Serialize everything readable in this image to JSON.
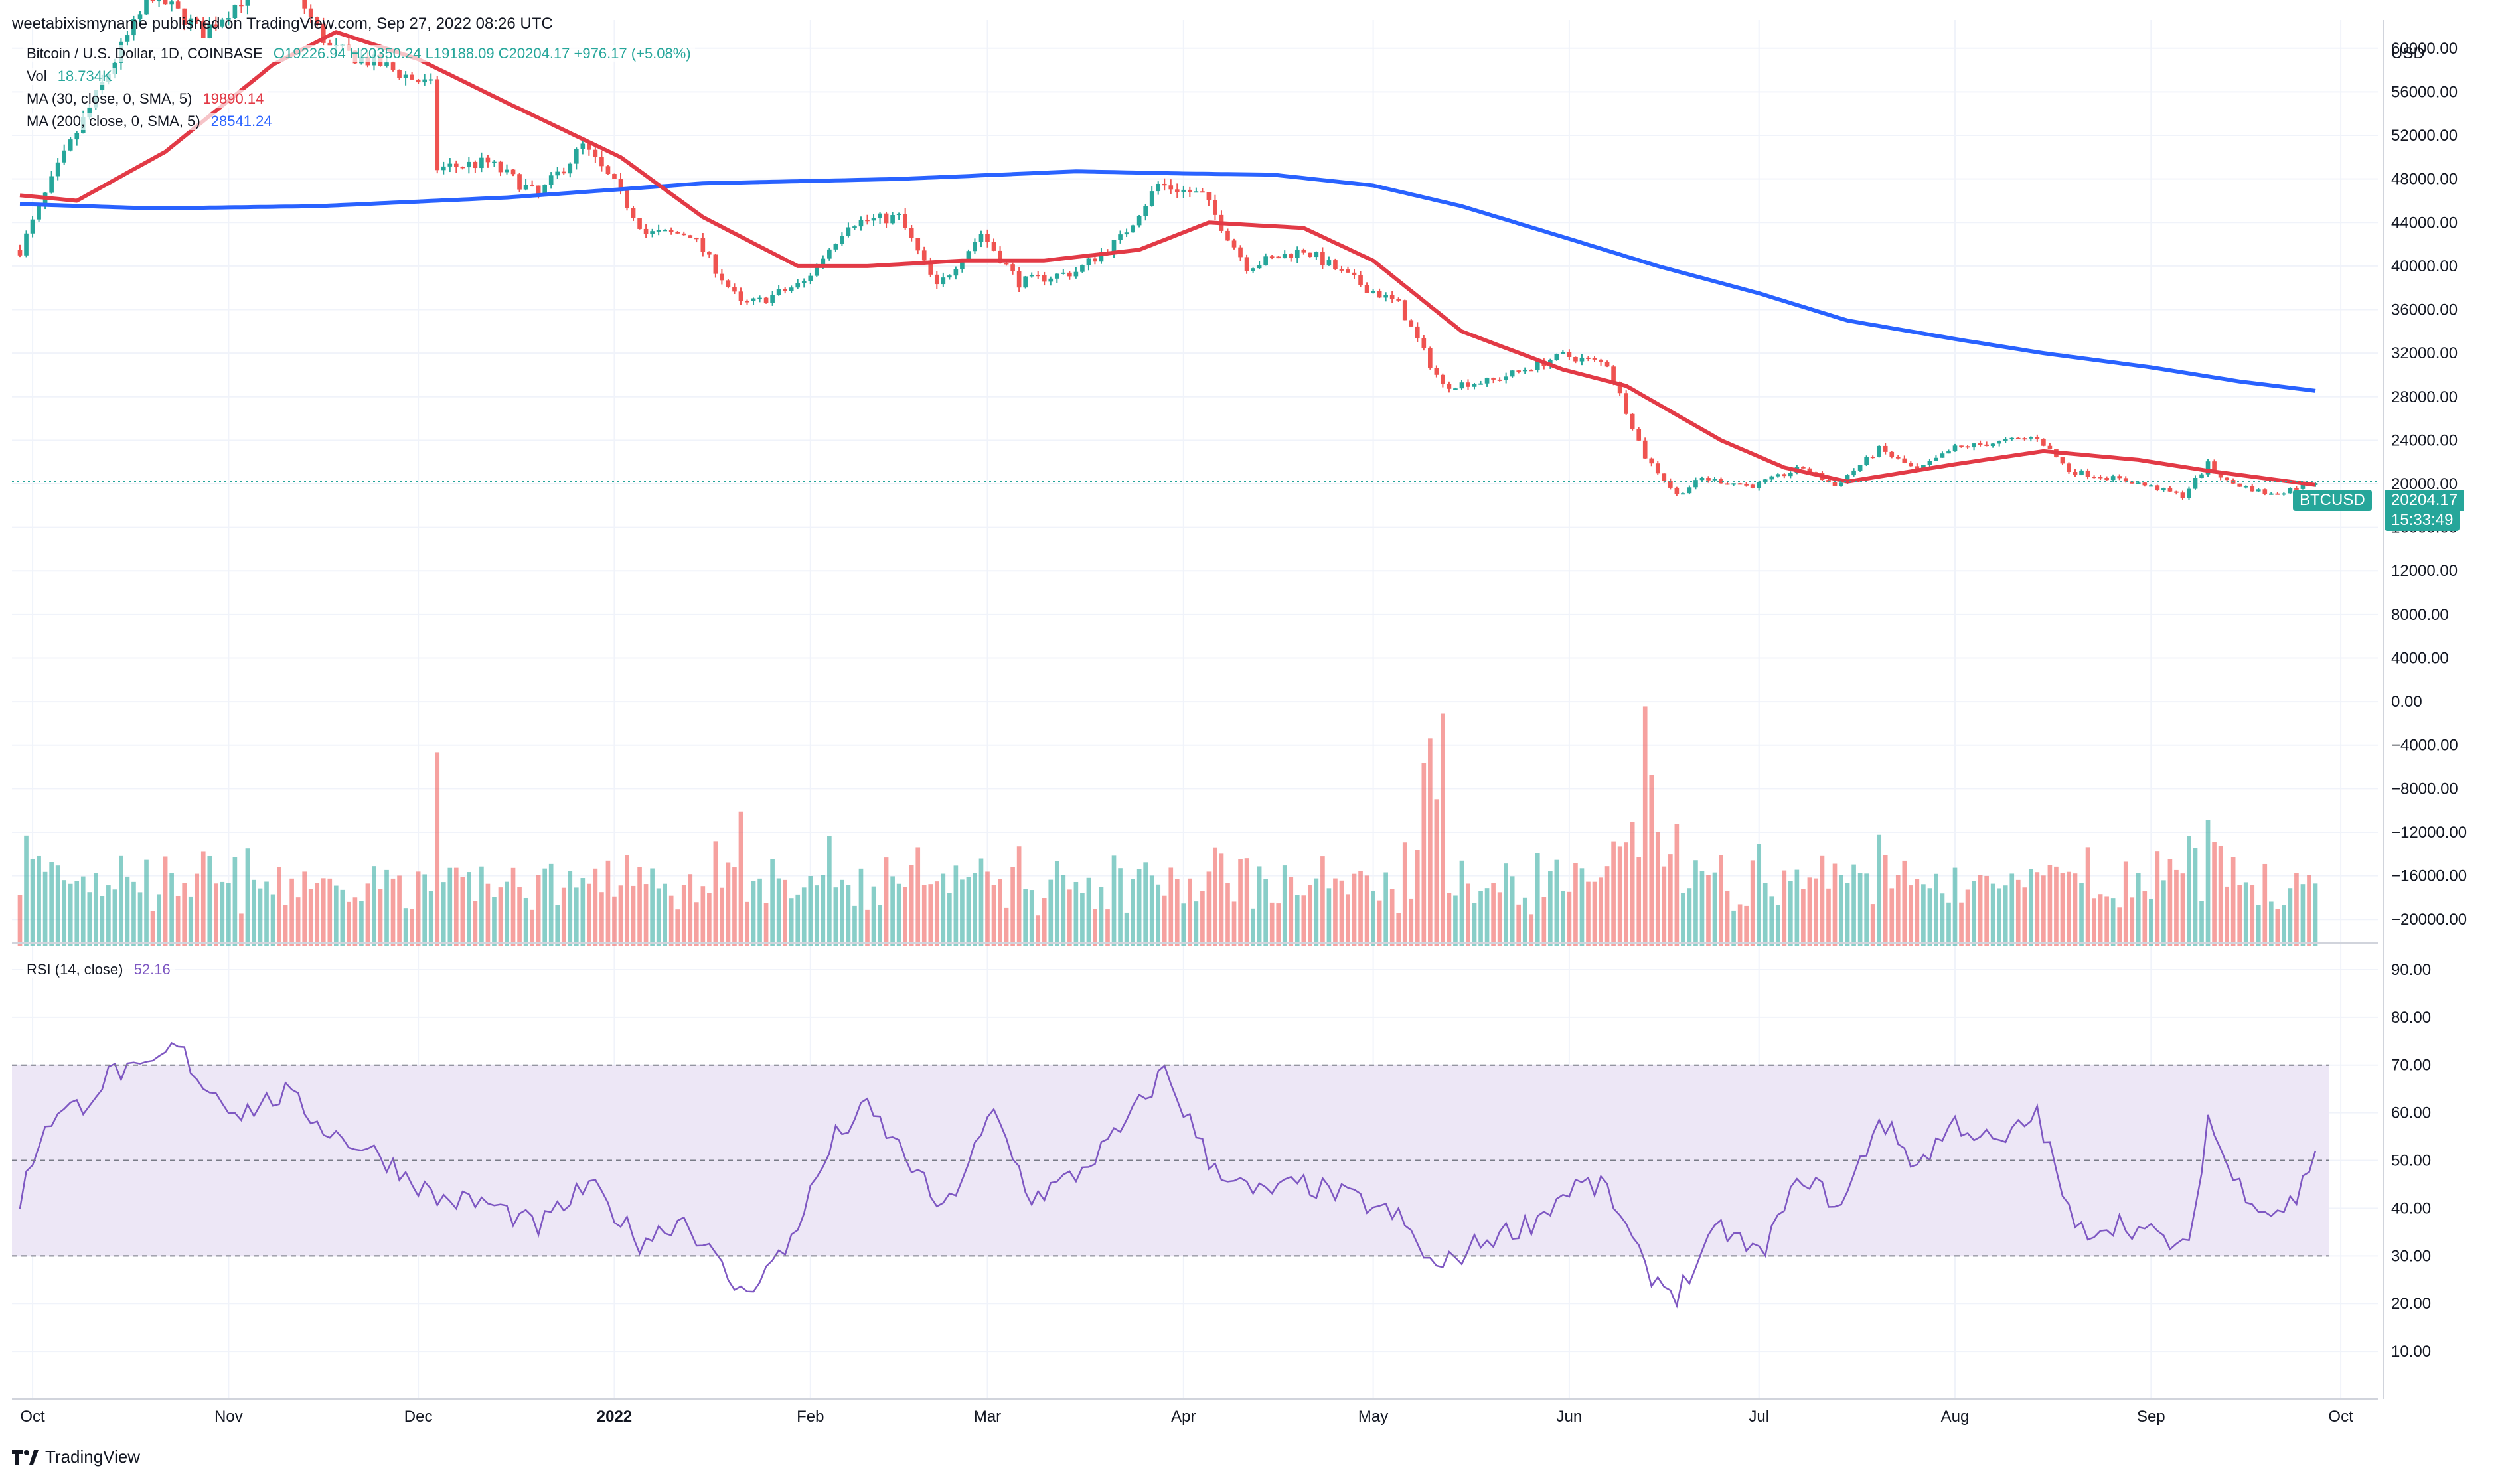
{
  "header": {
    "publisher": "weetabixismyname published on TradingView.com, Sep 27, 2022 08:26 UTC"
  },
  "legend": {
    "symbol": "Bitcoin / U.S. Dollar, 1D, COINBASE",
    "ohlc": "O19226.94  H20350.24  L19188.09  C20204.17  +976.17 (+5.08%)",
    "vol_label": "Vol",
    "vol_value": "18.734K",
    "ma30_label": "MA (30, close, 0, SMA, 5)",
    "ma30_value": "19890.14",
    "ma200_label": "MA (200, close, 0, SMA, 5)",
    "ma200_value": "28541.24",
    "rsi_label": "RSI (14, close)",
    "rsi_value": "52.16"
  },
  "tags": {
    "symbol": "BTCUSD",
    "price": "20204.17",
    "countdown": "15:33:49"
  },
  "footer": {
    "brand": "TradingView"
  },
  "colors": {
    "up": "#26a69a",
    "down": "#ef5350",
    "ma30": "#e23a46",
    "ma200": "#2962ff",
    "rsi": "#7e57c2",
    "rsi_band": "#ede7f6"
  },
  "chart_data": [
    {
      "type": "candlestick",
      "title": "Bitcoin / U.S. Dollar, 1D, COINBASE",
      "currency": "USD",
      "x_ticks": [
        "Oct",
        "Nov",
        "Dec",
        "2022",
        "Feb",
        "Mar",
        "Apr",
        "May",
        "Jun",
        "Jul",
        "Aug",
        "Sep",
        "Oct"
      ],
      "price_ticks": [
        "60000.00",
        "56000.00",
        "52000.00",
        "48000.00",
        "44000.00",
        "40000.00",
        "36000.00",
        "32000.00",
        "28000.00",
        "24000.00",
        "20000.00",
        "16000.00",
        "12000.00",
        "8000.00",
        "4000.00",
        "0.00",
        "−4000.00",
        "−8000.00",
        "−12000.00",
        "−16000.00",
        "−20000.00"
      ],
      "ylim": [
        -22000,
        62000
      ],
      "date_range": [
        "2021-09-29",
        "2022-09-27"
      ],
      "close_anchors": [
        [
          "2021-09-29",
          41500
        ],
        [
          "2021-10-05",
          49000
        ],
        [
          "2021-10-15",
          60000
        ],
        [
          "2021-10-20",
          65000
        ],
        [
          "2021-10-28",
          61500
        ],
        [
          "2021-11-09",
          67500
        ],
        [
          "2021-11-17",
          60000
        ],
        [
          "2021-11-25",
          58500
        ],
        [
          "2021-12-03",
          56500
        ],
        [
          "2021-12-04",
          49000
        ],
        [
          "2021-12-12",
          49500
        ],
        [
          "2021-12-20",
          46500
        ],
        [
          "2021-12-27",
          51000
        ],
        [
          "2022-01-01",
          47500
        ],
        [
          "2022-01-06",
          43000
        ],
        [
          "2022-01-13",
          43000
        ],
        [
          "2022-01-21",
          36500
        ],
        [
          "2022-01-24",
          36800
        ],
        [
          "2022-01-31",
          38500
        ],
        [
          "2022-02-07",
          44000
        ],
        [
          "2022-02-15",
          44500
        ],
        [
          "2022-02-21",
          38000
        ],
        [
          "2022-02-28",
          43000
        ],
        [
          "2022-03-06",
          38500
        ],
        [
          "2022-03-15",
          39500
        ],
        [
          "2022-03-22",
          42500
        ],
        [
          "2022-03-28",
          47500
        ],
        [
          "2022-04-04",
          46500
        ],
        [
          "2022-04-11",
          40000
        ],
        [
          "2022-04-20",
          41500
        ],
        [
          "2022-04-30",
          38000
        ],
        [
          "2022-05-05",
          36500
        ],
        [
          "2022-05-10",
          31000
        ],
        [
          "2022-05-12",
          29000
        ],
        [
          "2022-05-20",
          29500
        ],
        [
          "2022-05-31",
          31800
        ],
        [
          "2022-06-07",
          31000
        ],
        [
          "2022-06-13",
          22500
        ],
        [
          "2022-06-18",
          19000
        ],
        [
          "2022-06-22",
          20500
        ],
        [
          "2022-06-30",
          19800
        ],
        [
          "2022-07-08",
          21500
        ],
        [
          "2022-07-13",
          19800
        ],
        [
          "2022-07-20",
          23200
        ],
        [
          "2022-07-26",
          21200
        ],
        [
          "2022-08-01",
          23300
        ],
        [
          "2022-08-14",
          24300
        ],
        [
          "2022-08-19",
          21200
        ],
        [
          "2022-08-29",
          20200
        ],
        [
          "2022-09-06",
          18900
        ],
        [
          "2022-09-10",
          21800
        ],
        [
          "2022-09-13",
          20200
        ],
        [
          "2022-09-20",
          19000
        ],
        [
          "2022-09-27",
          20204
        ]
      ],
      "ma30_anchors": [
        [
          "2021-09-29",
          46500
        ],
        [
          "2021-10-08",
          46000
        ],
        [
          "2021-10-22",
          50500
        ],
        [
          "2021-11-08",
          58500
        ],
        [
          "2021-11-18",
          61500
        ],
        [
          "2021-12-01",
          59000
        ],
        [
          "2021-12-15",
          55000
        ],
        [
          "2022-01-02",
          50000
        ],
        [
          "2022-01-15",
          44500
        ],
        [
          "2022-01-30",
          40000
        ],
        [
          "2022-02-10",
          40000
        ],
        [
          "2022-02-25",
          40500
        ],
        [
          "2022-03-10",
          40500
        ],
        [
          "2022-03-25",
          41500
        ],
        [
          "2022-04-05",
          44000
        ],
        [
          "2022-04-20",
          43500
        ],
        [
          "2022-05-01",
          40500
        ],
        [
          "2022-05-15",
          34000
        ],
        [
          "2022-05-31",
          30500
        ],
        [
          "2022-06-10",
          29000
        ],
        [
          "2022-06-25",
          24000
        ],
        [
          "2022-07-05",
          21500
        ],
        [
          "2022-07-15",
          20200
        ],
        [
          "2022-08-01",
          21800
        ],
        [
          "2022-08-15",
          23000
        ],
        [
          "2022-08-30",
          22200
        ],
        [
          "2022-09-10",
          21200
        ],
        [
          "2022-09-27",
          19890
        ]
      ],
      "ma200_anchors": [
        [
          "2021-09-29",
          45700
        ],
        [
          "2021-10-20",
          45300
        ],
        [
          "2021-11-15",
          45500
        ],
        [
          "2021-12-15",
          46300
        ],
        [
          "2022-01-15",
          47600
        ],
        [
          "2022-02-15",
          48000
        ],
        [
          "2022-03-15",
          48700
        ],
        [
          "2022-04-01",
          48500
        ],
        [
          "2022-04-15",
          48400
        ],
        [
          "2022-05-01",
          47400
        ],
        [
          "2022-05-15",
          45500
        ],
        [
          "2022-06-01",
          42500
        ],
        [
          "2022-06-15",
          40000
        ],
        [
          "2022-07-01",
          37500
        ],
        [
          "2022-07-15",
          35000
        ],
        [
          "2022-08-01",
          33300
        ],
        [
          "2022-08-15",
          32000
        ],
        [
          "2022-09-01",
          30700
        ],
        [
          "2022-09-15",
          29400
        ],
        [
          "2022-09-27",
          28541
        ]
      ],
      "last_price": 20204.17
    },
    {
      "type": "line",
      "title": "RSI (14, close)",
      "yticks": [
        "90.00",
        "80.00",
        "70.00",
        "60.00",
        "50.00",
        "40.00",
        "30.00",
        "20.00",
        "10.00"
      ],
      "ylim": [
        0,
        95
      ],
      "band": [
        30,
        70
      ],
      "midline": 50,
      "anchors": [
        [
          "2021-09-29",
          42
        ],
        [
          "2021-10-03",
          58
        ],
        [
          "2021-10-09",
          62
        ],
        [
          "2021-10-14",
          69
        ],
        [
          "2021-10-18",
          68
        ],
        [
          "2021-10-24",
          74
        ],
        [
          "2021-10-28",
          66
        ],
        [
          "2021-11-03",
          60
        ],
        [
          "2021-11-10",
          64
        ],
        [
          "2021-11-17",
          56
        ],
        [
          "2021-11-25",
          51
        ],
        [
          "2021-12-04",
          42
        ],
        [
          "2021-12-12",
          41
        ],
        [
          "2021-12-20",
          36
        ],
        [
          "2021-12-28",
          45
        ],
        [
          "2022-01-05",
          33
        ],
        [
          "2022-01-12",
          38
        ],
        [
          "2022-01-21",
          22
        ],
        [
          "2022-01-28",
          31
        ],
        [
          "2022-02-05",
          55
        ],
        [
          "2022-02-10",
          61
        ],
        [
          "2022-02-16",
          51
        ],
        [
          "2022-02-22",
          39
        ],
        [
          "2022-03-02",
          60
        ],
        [
          "2022-03-08",
          42
        ],
        [
          "2022-03-15",
          47
        ],
        [
          "2022-03-22",
          56
        ],
        [
          "2022-03-29",
          69
        ],
        [
          "2022-04-05",
          50
        ],
        [
          "2022-04-12",
          43
        ],
        [
          "2022-04-20",
          45
        ],
        [
          "2022-04-28",
          42
        ],
        [
          "2022-05-05",
          38
        ],
        [
          "2022-05-11",
          27
        ],
        [
          "2022-05-18",
          33
        ],
        [
          "2022-05-26",
          37
        ],
        [
          "2022-06-02",
          45
        ],
        [
          "2022-06-07",
          44
        ],
        [
          "2022-06-13",
          27
        ],
        [
          "2022-06-18",
          22
        ],
        [
          "2022-06-25",
          36
        ],
        [
          "2022-07-01",
          30
        ],
        [
          "2022-07-08",
          47
        ],
        [
          "2022-07-14",
          40
        ],
        [
          "2022-07-20",
          59
        ],
        [
          "2022-07-26",
          49
        ],
        [
          "2022-08-01",
          58
        ],
        [
          "2022-08-08",
          53
        ],
        [
          "2022-08-14",
          60
        ],
        [
          "2022-08-20",
          35
        ],
        [
          "2022-08-27",
          37
        ],
        [
          "2022-09-02",
          34
        ],
        [
          "2022-09-07",
          31
        ],
        [
          "2022-09-10",
          59
        ],
        [
          "2022-09-14",
          46
        ],
        [
          "2022-09-20",
          39
        ],
        [
          "2022-09-24",
          42
        ],
        [
          "2022-09-27",
          52
        ]
      ],
      "last_value": 52.16
    }
  ]
}
